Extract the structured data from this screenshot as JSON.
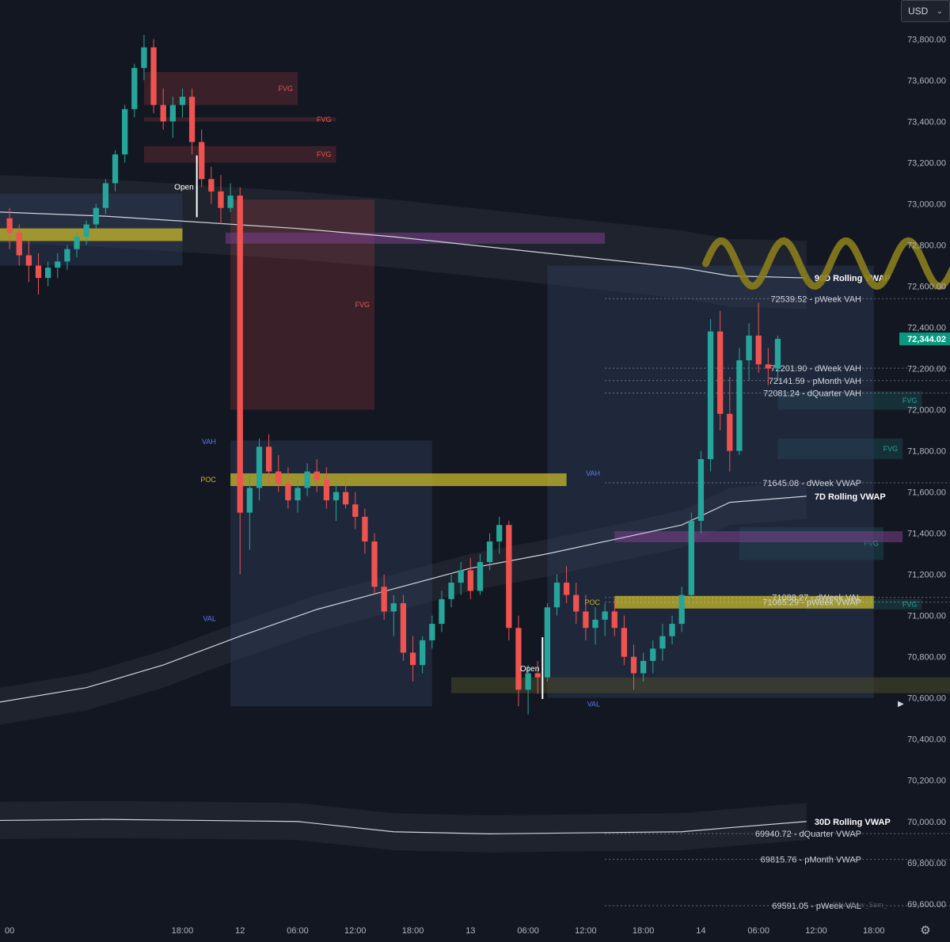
{
  "toolbar": {
    "currency": "USD",
    "caret": "⌄",
    "settings_icon": "gear-icon",
    "settings_glyph": "⚙",
    "scroll_arrow": "▶"
  },
  "watermark": "@Nephew_Sam_",
  "colors": {
    "background": "#131722",
    "up": "#26a69a",
    "down": "#ef5350",
    "grid_text": "#b2b5be",
    "fvg_red": "#ef5350",
    "fvg_green": "#26a69a",
    "poc": "#c9b92a",
    "vwap_line": "#d1d4dc",
    "highlight": "#8a7d1c",
    "price_label": "#089981",
    "blue": "#2962ff",
    "purple": "#7b3f8c"
  },
  "chart_data": {
    "type": "candlestick",
    "symbol_quote": "USD",
    "y_axis": {
      "ticks": [
        73800,
        73600,
        73400,
        73200,
        73000,
        72800,
        72600,
        72400,
        72200,
        72000,
        71800,
        71600,
        71400,
        71200,
        71000,
        70800,
        70600,
        70400,
        70200,
        70000,
        69800,
        69600
      ],
      "tick_labels": [
        "73,800.00",
        "73,600.00",
        "73,400.00",
        "73,200.00",
        "73,000.00",
        "72,800.00",
        "72,600.00",
        "72,400.00",
        "72,200.00",
        "72,000.00",
        "71,800.00",
        "71,600.00",
        "71,400.00",
        "71,200.00",
        "71,000.00",
        "70,800.00",
        "70,600.00",
        "70,400.00",
        "70,200.00",
        "70,000.00",
        "69,800.00",
        "69,600.00"
      ],
      "range": [
        69530,
        73990
      ]
    },
    "x_axis": {
      "labels": [
        "00",
        "18:00",
        "12",
        "06:00",
        "12:00",
        "18:00",
        "13",
        "06:00",
        "12:00",
        "18:00",
        "14",
        "06:00",
        "12:00",
        "18:00"
      ],
      "hours": [
        0,
        18,
        24,
        30,
        36,
        42,
        48,
        54,
        60,
        66,
        72,
        78,
        84,
        90
      ],
      "range": [
        -1,
        92
      ]
    },
    "current_price": {
      "value": 72344.02,
      "label": "72,344.02"
    },
    "levels": [
      {
        "value": 72539.52,
        "label": "72539.52 - pWeek VAH"
      },
      {
        "value": 72201.9,
        "label": "72201.90 - dWeek VAH"
      },
      {
        "value": 72141.59,
        "label": "72141.59 - pMonth VAH"
      },
      {
        "value": 72081.24,
        "label": "72081.24 - dQuarter VAH"
      },
      {
        "value": 71645.08,
        "label": "71645.08 - dWeek VWAP"
      },
      {
        "value": 71088.27,
        "label": "71088.27 - dWeek VAL"
      },
      {
        "value": 71065.29,
        "label": "71065.29 - pWeek VWAP"
      },
      {
        "value": 69940.72,
        "label": "69940.72 - dQuarter VWAP"
      },
      {
        "value": 69815.76,
        "label": "69815.76 - pMonth VWAP"
      },
      {
        "value": 69591.05,
        "label": "69591.05 - pWeek VAL"
      }
    ],
    "rolling_vwaps": [
      {
        "name": "90D Rolling VWAP",
        "points": [
          [
            -1,
            72960
          ],
          [
            10,
            72940
          ],
          [
            20,
            72910
          ],
          [
            30,
            72880
          ],
          [
            40,
            72840
          ],
          [
            50,
            72790
          ],
          [
            60,
            72740
          ],
          [
            70,
            72690
          ],
          [
            75,
            72650
          ],
          [
            83,
            72640
          ]
        ]
      },
      {
        "name": "7D Rolling VWAP",
        "points": [
          [
            -1,
            70580
          ],
          [
            8,
            70650
          ],
          [
            16,
            70760
          ],
          [
            24,
            70900
          ],
          [
            32,
            71030
          ],
          [
            40,
            71130
          ],
          [
            48,
            71230
          ],
          [
            56,
            71300
          ],
          [
            62,
            71360
          ],
          [
            70,
            71440
          ],
          [
            75,
            71550
          ],
          [
            83,
            71580
          ]
        ]
      },
      {
        "name": "30D Rolling VWAP",
        "points": [
          [
            -1,
            70005
          ],
          [
            10,
            70010
          ],
          [
            20,
            70005
          ],
          [
            30,
            70000
          ],
          [
            40,
            69950
          ],
          [
            50,
            69940
          ],
          [
            60,
            69945
          ],
          [
            70,
            69950
          ],
          [
            75,
            69970
          ],
          [
            83,
            70000
          ]
        ]
      }
    ],
    "fvg_zones": [
      {
        "label": "FVG",
        "kind": "bearish",
        "x": [
          14,
          30
        ],
        "y": [
          73480,
          73640
        ]
      },
      {
        "label": "FVG",
        "kind": "bearish",
        "x": [
          14,
          34
        ],
        "y": [
          73400,
          73420
        ]
      },
      {
        "label": "FVG",
        "kind": "bearish",
        "x": [
          14,
          34
        ],
        "y": [
          73200,
          73280
        ]
      },
      {
        "label": "FVG",
        "kind": "bearish",
        "x": [
          23,
          38
        ],
        "y": [
          72000,
          73020
        ]
      },
      {
        "label": "FVG",
        "kind": "bullish",
        "x": [
          80,
          95
        ],
        "y": [
          72000,
          72090
        ]
      },
      {
        "label": "FVG",
        "kind": "bullish",
        "x": [
          80,
          93
        ],
        "y": [
          71760,
          71860
        ]
      },
      {
        "label": "FVG",
        "kind": "bullish",
        "x": [
          76,
          91
        ],
        "y": [
          71270,
          71430
        ]
      },
      {
        "label": "FVG",
        "kind": "bullish",
        "x": [
          83,
          95
        ],
        "y": [
          71030,
          71080
        ]
      }
    ],
    "profile_labels": [
      {
        "label": "VAH",
        "value": 71845
      },
      {
        "label": "POC",
        "value": 71660
      },
      {
        "label": "VAL",
        "value": 70985
      },
      {
        "label": "VAH",
        "value": 71690
      },
      {
        "label": "POC",
        "value": 71065
      },
      {
        "label": "VAL",
        "value": 70570
      }
    ],
    "session_opens": [
      {
        "label": "Open",
        "x": 19.5,
        "value": 73085
      },
      {
        "label": "Open",
        "x": 55.5,
        "value": 70745
      }
    ],
    "candles": [
      [
        0,
        72930,
        72980,
        72780,
        72860
      ],
      [
        1,
        72860,
        72900,
        72700,
        72750
      ],
      [
        2,
        72750,
        72820,
        72620,
        72700
      ],
      [
        3,
        72700,
        72760,
        72560,
        72640
      ],
      [
        4,
        72640,
        72720,
        72600,
        72690
      ],
      [
        5,
        72690,
        72760,
        72640,
        72720
      ],
      [
        6,
        72720,
        72800,
        72680,
        72780
      ],
      [
        7,
        72780,
        72860,
        72740,
        72840
      ],
      [
        8,
        72840,
        72920,
        72800,
        72900
      ],
      [
        9,
        72900,
        73000,
        72880,
        72980
      ],
      [
        10,
        72980,
        73120,
        72950,
        73100
      ],
      [
        11,
        73100,
        73260,
        73060,
        73240
      ],
      [
        12,
        73240,
        73480,
        73200,
        73460
      ],
      [
        13,
        73460,
        73680,
        73420,
        73660
      ],
      [
        14,
        73660,
        73820,
        73600,
        73760
      ],
      [
        15,
        73760,
        73800,
        73440,
        73480
      ],
      [
        16,
        73480,
        73560,
        73360,
        73400
      ],
      [
        17,
        73400,
        73520,
        73320,
        73480
      ],
      [
        18,
        73480,
        73560,
        73420,
        73520
      ],
      [
        19,
        73520,
        73560,
        73240,
        73300
      ],
      [
        20,
        73300,
        73360,
        73080,
        73120
      ],
      [
        21,
        73120,
        73180,
        73000,
        73060
      ],
      [
        22,
        73060,
        73140,
        72900,
        72980
      ],
      [
        23,
        72980,
        73100,
        72960,
        73040
      ],
      [
        24,
        73040,
        73080,
        71200,
        71500
      ],
      [
        25,
        71500,
        71680,
        71320,
        71620
      ],
      [
        26,
        71620,
        71860,
        71560,
        71820
      ],
      [
        27,
        71820,
        71880,
        71640,
        71700
      ],
      [
        28,
        71700,
        71780,
        71600,
        71640
      ],
      [
        29,
        71640,
        71720,
        71520,
        71560
      ],
      [
        30,
        71560,
        71660,
        71500,
        71620
      ],
      [
        31,
        71620,
        71740,
        71580,
        71700
      ],
      [
        32,
        71700,
        71760,
        71600,
        71660
      ],
      [
        33,
        71660,
        71720,
        71520,
        71560
      ],
      [
        34,
        71560,
        71640,
        71460,
        71600
      ],
      [
        35,
        71600,
        71680,
        71520,
        71540
      ],
      [
        36,
        71540,
        71600,
        71420,
        71480
      ],
      [
        37,
        71480,
        71520,
        71300,
        71360
      ],
      [
        38,
        71360,
        71400,
        71100,
        71140
      ],
      [
        39,
        71140,
        71200,
        70980,
        71020
      ],
      [
        40,
        71020,
        71100,
        70900,
        71060
      ],
      [
        41,
        71060,
        71100,
        70780,
        70820
      ],
      [
        42,
        70820,
        70900,
        70680,
        70760
      ],
      [
        43,
        70760,
        70900,
        70720,
        70880
      ],
      [
        44,
        70880,
        71000,
        70840,
        70960
      ],
      [
        45,
        70960,
        71120,
        70920,
        71080
      ],
      [
        46,
        71080,
        71200,
        71040,
        71160
      ],
      [
        47,
        71160,
        71260,
        71100,
        71220
      ],
      [
        48,
        71220,
        71280,
        71080,
        71120
      ],
      [
        49,
        71120,
        71300,
        71100,
        71260
      ],
      [
        50,
        71260,
        71400,
        71220,
        71360
      ],
      [
        51,
        71360,
        71480,
        71300,
        71440
      ],
      [
        52,
        71440,
        71460,
        70880,
        70940
      ],
      [
        53,
        70940,
        71000,
        70560,
        70640
      ],
      [
        54,
        70640,
        70760,
        70520,
        70720
      ],
      [
        55,
        70720,
        70780,
        70620,
        70700
      ],
      [
        56,
        70700,
        71060,
        70680,
        71040
      ],
      [
        57,
        71040,
        71200,
        71000,
        71160
      ],
      [
        58,
        71160,
        71240,
        71060,
        71100
      ],
      [
        59,
        71100,
        71160,
        70960,
        71020
      ],
      [
        60,
        71020,
        71100,
        70880,
        70940
      ],
      [
        61,
        70940,
        71040,
        70860,
        70980
      ],
      [
        62,
        70980,
        71060,
        70900,
        71020
      ],
      [
        63,
        71020,
        71080,
        70900,
        70940
      ],
      [
        64,
        70940,
        71000,
        70760,
        70800
      ],
      [
        65,
        70800,
        70860,
        70640,
        70720
      ],
      [
        66,
        70720,
        70820,
        70680,
        70780
      ],
      [
        67,
        70780,
        70880,
        70720,
        70840
      ],
      [
        68,
        70840,
        70960,
        70780,
        70900
      ],
      [
        69,
        70900,
        71000,
        70860,
        70960
      ],
      [
        70,
        70960,
        71140,
        70920,
        71100
      ],
      [
        71,
        71100,
        71500,
        71060,
        71460
      ],
      [
        72,
        71460,
        71800,
        71400,
        71760
      ],
      [
        73,
        71760,
        72440,
        71700,
        72380
      ],
      [
        74,
        72380,
        72480,
        71900,
        71980
      ],
      [
        75,
        71980,
        72160,
        71700,
        71800
      ],
      [
        76,
        71800,
        72300,
        71780,
        72240
      ],
      [
        77,
        72240,
        72420,
        72140,
        72360
      ],
      [
        78,
        72360,
        72520,
        72180,
        72220
      ],
      [
        79,
        72220,
        72300,
        72120,
        72200
      ],
      [
        80,
        72200,
        72360,
        72140,
        72344.02
      ]
    ]
  }
}
